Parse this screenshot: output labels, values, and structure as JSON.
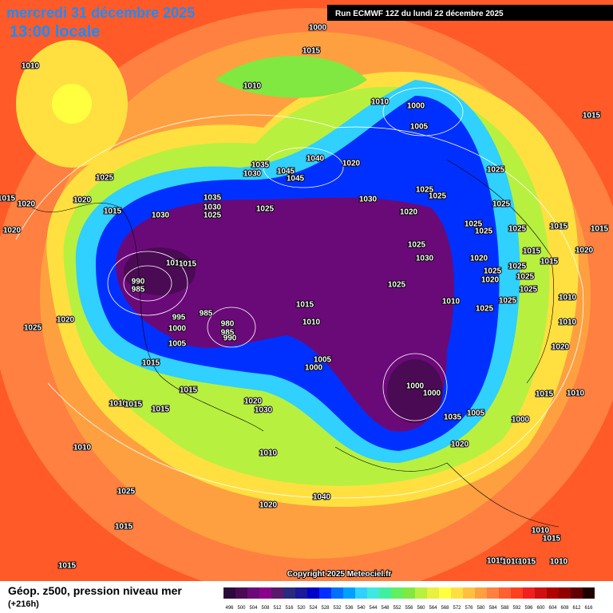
{
  "header": {
    "title": "mercredi 31 décembre 2025",
    "subtitle": "13:00 locale",
    "run": "Run ECMWF 12Z du lundi 22 décembre 2025"
  },
  "copyright": "Copyright 2025 Meteociel.fr",
  "legend": {
    "title": "Géop. z500, pression niveau mer",
    "subtitle": "(+216h)"
  },
  "color_scale": {
    "values": [
      496,
      500,
      504,
      508,
      512,
      516,
      520,
      524,
      528,
      532,
      536,
      540,
      544,
      548,
      552,
      556,
      560,
      564,
      568,
      572,
      576,
      580,
      584,
      588,
      592,
      596,
      600,
      604,
      608,
      612,
      616
    ],
    "colors": [
      "#2b0b3a",
      "#4b0a54",
      "#6a0a78",
      "#8a008a",
      "#5a1a6a",
      "#2a2a80",
      "#1a1a9a",
      "#0000c8",
      "#0030ff",
      "#0070ff",
      "#00a0ff",
      "#30d0ff",
      "#40e8e0",
      "#40f0a0",
      "#60f060",
      "#80e840",
      "#b8f040",
      "#e8f040",
      "#ffff40",
      "#ffe040",
      "#ffc040",
      "#ffa040",
      "#ff8040",
      "#ff6030",
      "#ff4020",
      "#f02020",
      "#d01010",
      "#b00000",
      "#900000",
      "#600000",
      "#200000"
    ]
  },
  "isobar_labels": [
    1000,
    1015,
    1010,
    1010,
    1010,
    1000,
    1005,
    1015,
    1040,
    1020,
    1035,
    1030,
    1045,
    1045,
    1025,
    1025,
    1035,
    1030,
    1025,
    1030,
    1025,
    1025,
    1025,
    1015,
    1020,
    1020,
    1015,
    1030,
    1020,
    1025,
    1025,
    1025,
    1025,
    1015,
    1015,
    1020,
    1025,
    1030,
    1020,
    1015,
    1015,
    1020,
    1025,
    1015,
    1015,
    990,
    985,
    1025,
    1025,
    1020,
    1025,
    1025,
    1010,
    1015,
    1025,
    1025,
    1010,
    995,
    985,
    1010,
    980,
    985,
    990,
    1000,
    1025,
    1020,
    1010,
    1005,
    1005,
    1000,
    1020,
    1015,
    1000,
    1000,
    1015,
    1015,
    1010,
    1015,
    1015,
    1020,
    1030,
    1035,
    1005,
    1000,
    1010,
    1020,
    1010,
    1040,
    1020,
    1025,
    1015,
    1010,
    1015,
    1015,
    1015,
    1010,
    1015,
    1010,
    1010
  ]
}
